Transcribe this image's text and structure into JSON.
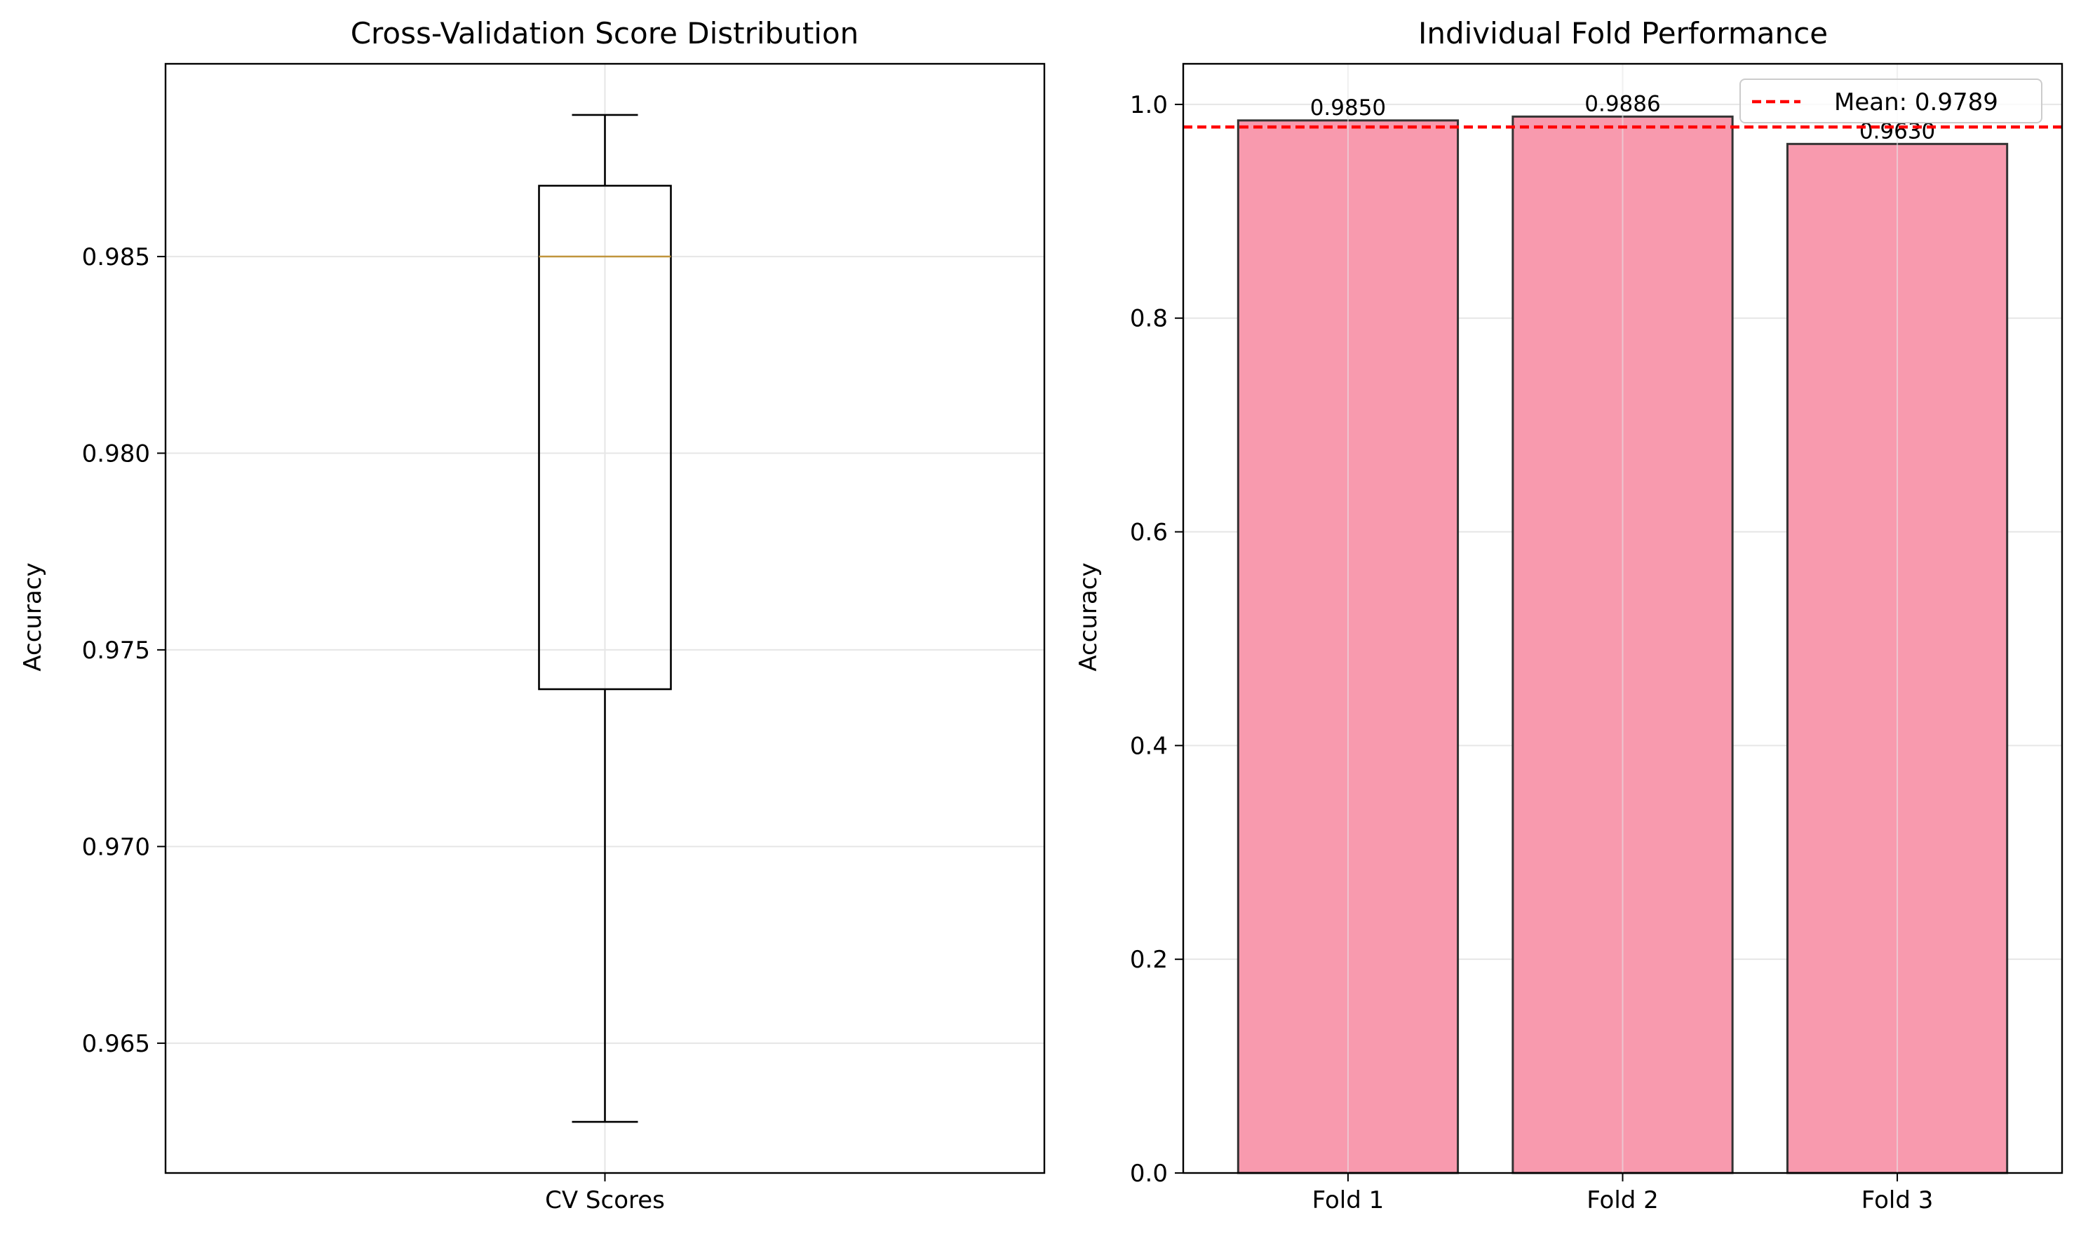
{
  "chart_data": [
    {
      "type": "box",
      "title": "Cross-Validation Score Distribution",
      "xlabel": "",
      "ylabel": "Accuracy",
      "categories": [
        "CV Scores"
      ],
      "box": {
        "whisker_low": 0.963,
        "q1": 0.974,
        "median": 0.985,
        "q3": 0.9868,
        "whisker_high": 0.9886
      },
      "ylim": [
        0.9617,
        0.9899
      ],
      "yticks": [
        {
          "value": 0.965,
          "label": "0.965"
        },
        {
          "value": 0.97,
          "label": "0.970"
        },
        {
          "value": 0.975,
          "label": "0.975"
        },
        {
          "value": 0.98,
          "label": "0.980"
        },
        {
          "value": 0.985,
          "label": "0.985"
        }
      ],
      "grid": true,
      "colors": {
        "box": "#000000",
        "median": "#c0953c",
        "grid": "#e6e6e6"
      }
    },
    {
      "type": "bar",
      "title": "Individual Fold Performance",
      "xlabel": "",
      "ylabel": "Accuracy",
      "categories": [
        "Fold 1",
        "Fold 2",
        "Fold 3"
      ],
      "values": [
        0.985,
        0.9886,
        0.963
      ],
      "data_labels": [
        "0.9850",
        "0.9886",
        "0.9630"
      ],
      "mean_line": {
        "value": 0.9789,
        "label": "Mean: 0.9789",
        "color": "#ff0000"
      },
      "ylim": [
        0.0,
        1.038
      ],
      "yticks": [
        {
          "value": 0.0,
          "label": "0.0"
        },
        {
          "value": 0.2,
          "label": "0.2"
        },
        {
          "value": 0.4,
          "label": "0.4"
        },
        {
          "value": 0.6,
          "label": "0.6"
        },
        {
          "value": 0.8,
          "label": "0.8"
        },
        {
          "value": 1.0,
          "label": "1.0"
        }
      ],
      "legend": "top-right",
      "grid": true,
      "colors": {
        "bar": "#f89aae",
        "bar_edge": "#333333",
        "grid": "#e6e6e6"
      }
    }
  ]
}
